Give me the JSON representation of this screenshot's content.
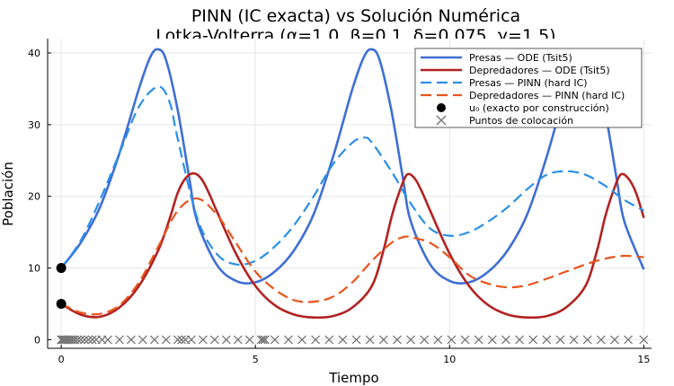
{
  "chart_data": {
    "type": "line",
    "title": "PINN (IC exacta) vs Solución Numérica",
    "subtitle": "Lotka-Volterra  (α=1.0, β=0.1, δ=0.075, γ=1.5)",
    "xlabel": "Tiempo",
    "ylabel": "Población",
    "xlim": [
      -0.35,
      15.2
    ],
    "ylim": [
      -1.2,
      42
    ],
    "xticks": [
      0,
      5,
      10,
      15
    ],
    "yticks": [
      0,
      10,
      20,
      30,
      40
    ],
    "grid": true,
    "legend_position": "top-right",
    "series": [
      {
        "name": "Presas — ODE (Tsit5)",
        "color": "#3f6fd4",
        "style": "solid",
        "x": [
          0,
          0.5,
          1.0,
          1.5,
          2.0,
          2.3,
          2.5,
          2.7,
          3.0,
          3.3,
          3.5,
          4.0,
          4.5,
          5.0,
          5.5,
          6.0,
          6.5,
          7.0,
          7.5,
          7.8,
          8.0,
          8.2,
          8.5,
          8.8,
          9.0,
          9.5,
          10.0,
          10.5,
          11.0,
          11.5,
          12.0,
          12.5,
          13.0,
          13.3,
          13.5,
          13.7,
          14.0,
          14.3,
          14.5,
          15.0
        ],
        "y": [
          10,
          13.5,
          18.5,
          26,
          35,
          39.5,
          40.5,
          39,
          32,
          22.5,
          16.5,
          10.5,
          8.2,
          8.0,
          9.5,
          12.5,
          17.5,
          25.5,
          35,
          39.5,
          40.5,
          39,
          32,
          22.5,
          16.5,
          10.5,
          8.2,
          8.0,
          9.5,
          12.5,
          17.5,
          25.5,
          35,
          39.5,
          40.5,
          39,
          32,
          22.5,
          16.5,
          9.8
        ]
      },
      {
        "name": "Depredadores — ODE (Tsit5)",
        "color": "#b22222",
        "style": "solid",
        "x": [
          0,
          0.5,
          1.0,
          1.5,
          2.0,
          2.5,
          2.8,
          3.0,
          3.2,
          3.4,
          3.6,
          3.8,
          4.0,
          4.5,
          5.0,
          5.5,
          6.0,
          6.5,
          7.0,
          7.5,
          8.0,
          8.3,
          8.5,
          8.7,
          8.9,
          9.1,
          9.3,
          9.5,
          10.0,
          10.5,
          11.0,
          11.5,
          12.0,
          12.5,
          13.0,
          13.5,
          13.8,
          14.0,
          14.2,
          14.4,
          14.6,
          14.8,
          15.0
        ],
        "y": [
          5,
          3.5,
          3.2,
          4.5,
          7.5,
          12.5,
          17,
          20.5,
          22.5,
          23.2,
          22.5,
          20.5,
          18,
          12,
          7.5,
          4.8,
          3.5,
          3.1,
          3.3,
          4.5,
          7.5,
          12.5,
          17,
          20.5,
          23.0,
          22.5,
          20.5,
          18,
          12,
          7.5,
          4.8,
          3.5,
          3.1,
          3.3,
          4.5,
          7.5,
          12.5,
          17,
          20.5,
          23.0,
          22.5,
          20.5,
          17
        ]
      },
      {
        "name": "Presas — PINN (hard IC)",
        "color": "#2b8fe8",
        "style": "dashed",
        "x": [
          0,
          0.5,
          1.0,
          1.5,
          2.0,
          2.5,
          2.8,
          3.0,
          3.5,
          4.0,
          4.5,
          5.0,
          5.5,
          6.0,
          6.5,
          7.0,
          7.5,
          7.8,
          8.0,
          8.5,
          9.0,
          9.5,
          10.0,
          10.5,
          11.0,
          11.5,
          12.0,
          12.5,
          13.0,
          13.5,
          14.0,
          14.5,
          15.0
        ],
        "y": [
          10,
          13.8,
          19.5,
          26,
          32.5,
          35.3,
          33,
          28,
          17,
          12,
          10.5,
          11,
          13,
          16,
          20,
          24.5,
          27.5,
          28.2,
          27.5,
          23.5,
          19,
          15.5,
          14.5,
          15,
          16.5,
          18.5,
          21,
          23,
          23.5,
          23,
          21.5,
          19.5,
          18
        ]
      },
      {
        "name": "Depredadores — PINN (hard IC)",
        "color": "#e8541c",
        "style": "dashed",
        "x": [
          0,
          0.5,
          1.0,
          1.5,
          2.0,
          2.5,
          3.0,
          3.5,
          4.0,
          4.5,
          5.0,
          5.5,
          6.0,
          6.5,
          7.0,
          7.5,
          8.0,
          8.5,
          8.8,
          9.0,
          9.5,
          10.0,
          10.5,
          11.0,
          11.5,
          12.0,
          12.5,
          13.0,
          13.5,
          14.0,
          14.5,
          15.0
        ],
        "y": [
          5,
          3.8,
          3.6,
          4.8,
          8,
          13,
          18,
          19.7,
          17.5,
          13.5,
          9.5,
          7,
          5.5,
          5.3,
          6,
          8,
          11,
          13.5,
          14.3,
          14.3,
          13.5,
          11.5,
          9,
          7.8,
          7.3,
          7.6,
          8.5,
          9.5,
          10.5,
          11.3,
          11.7,
          11.5
        ]
      }
    ],
    "initial_conditions": {
      "name": "u₀ (exacto por construcción)",
      "color": "#000000",
      "x": [
        0,
        0
      ],
      "y": [
        10,
        5
      ]
    },
    "collocation": {
      "name": "Puntos de colocación",
      "color": "#777777",
      "y": 0,
      "x": [
        0,
        0.03,
        0.06,
        0.09,
        0.12,
        0.16,
        0.2,
        0.25,
        0.3,
        0.35,
        0.42,
        0.5,
        0.6,
        0.7,
        0.8,
        0.9,
        1.05,
        1.2,
        1.5,
        1.8,
        2.1,
        2.4,
        2.7,
        3.0,
        3.1,
        3.2,
        3.35,
        3.65,
        3.95,
        4.25,
        4.55,
        4.85,
        5.15,
        5.2,
        5.25,
        5.5,
        5.85,
        6.2,
        6.55,
        6.9,
        7.25,
        7.6,
        7.95,
        8.3,
        8.65,
        9.0,
        9.35,
        9.7,
        10.05,
        10.4,
        10.75,
        11.1,
        11.45,
        11.8,
        12.15,
        12.5,
        12.85,
        13.2,
        13.55,
        13.9,
        14.25,
        14.6,
        15.0
      ]
    }
  }
}
